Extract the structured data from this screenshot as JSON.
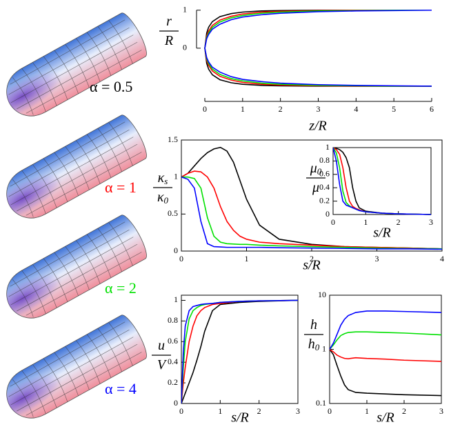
{
  "chart_data": [
    {
      "type": "line",
      "xlabel": "z/R",
      "ylabel": {
        "num": "r",
        "den": "R"
      },
      "frame": false,
      "x": [
        6,
        5,
        4,
        3,
        2,
        1.5,
        1,
        0.7,
        0.4,
        0.2,
        0.1,
        0.05,
        0,
        0.05,
        0.1,
        0.2,
        0.4,
        0.7,
        1,
        1.5,
        2,
        3,
        4,
        5,
        6
      ],
      "xlim": [
        0,
        6
      ],
      "xticks": [
        0,
        1,
        2,
        3,
        4,
        5,
        6
      ],
      "ylim": [
        -1.4,
        1.05
      ],
      "yticks": [
        0,
        1
      ],
      "series": [
        {
          "name": "α = 0.5",
          "color": "#000000",
          "values": [
            1,
            1,
            1,
            1,
            0.99,
            0.98,
            0.95,
            0.91,
            0.83,
            0.7,
            0.55,
            0.4,
            0,
            -0.4,
            -0.55,
            -0.7,
            -0.83,
            -0.91,
            -0.95,
            -0.98,
            -0.99,
            -1,
            -1,
            -1,
            -1
          ]
        },
        {
          "name": "α = 1",
          "color": "#ff0000",
          "values": [
            1,
            1,
            1,
            0.99,
            0.97,
            0.95,
            0.9,
            0.84,
            0.74,
            0.6,
            0.45,
            0.32,
            0,
            -0.32,
            -0.45,
            -0.6,
            -0.74,
            -0.84,
            -0.9,
            -0.95,
            -0.97,
            -0.99,
            -1,
            -1,
            -1
          ]
        },
        {
          "name": "α = 2",
          "color": "#00e000",
          "values": [
            1,
            1,
            0.99,
            0.98,
            0.95,
            0.92,
            0.86,
            0.8,
            0.69,
            0.55,
            0.4,
            0.28,
            0,
            -0.28,
            -0.4,
            -0.55,
            -0.69,
            -0.8,
            -0.86,
            -0.92,
            -0.95,
            -0.98,
            -0.99,
            -1,
            -1
          ]
        },
        {
          "name": "α = 4",
          "color": "#0000ff",
          "values": [
            1,
            0.99,
            0.98,
            0.96,
            0.92,
            0.88,
            0.82,
            0.75,
            0.63,
            0.5,
            0.36,
            0.25,
            0,
            -0.25,
            -0.36,
            -0.5,
            -0.63,
            -0.75,
            -0.82,
            -0.88,
            -0.92,
            -0.96,
            -0.98,
            -0.99,
            -1
          ]
        }
      ]
    },
    {
      "type": "line",
      "xlabel": "s/R",
      "ylabel": {
        "num": "κ",
        "num_sub": "s",
        "den": "κ",
        "den_sub": "0"
      },
      "frame": true,
      "x": [
        0,
        0.1,
        0.2,
        0.3,
        0.4,
        0.5,
        0.6,
        0.7,
        0.8,
        0.9,
        1,
        1.2,
        1.5,
        2,
        2.5,
        3,
        3.5,
        4
      ],
      "xlim": [
        0,
        4
      ],
      "xticks": [
        0,
        1,
        2,
        3,
        4
      ],
      "ylim": [
        0,
        1.5
      ],
      "yticks": [
        0,
        0.5,
        1,
        1.5
      ],
      "series": [
        {
          "color": "#000000",
          "values": [
            1,
            1.05,
            1.15,
            1.25,
            1.33,
            1.38,
            1.4,
            1.35,
            1.2,
            0.95,
            0.7,
            0.35,
            0.16,
            0.09,
            0.06,
            0.05,
            0.04,
            0.03
          ]
        },
        {
          "color": "#ff0000",
          "values": [
            1,
            1.05,
            1.08,
            1.07,
            1.0,
            0.85,
            0.6,
            0.4,
            0.28,
            0.2,
            0.16,
            0.12,
            0.1,
            0.08,
            0.06,
            0.05,
            0.04,
            0.03
          ]
        },
        {
          "color": "#00e000",
          "values": [
            1,
            1.0,
            0.98,
            0.85,
            0.45,
            0.2,
            0.12,
            0.1,
            0.095,
            0.09,
            0.09,
            0.08,
            0.07,
            0.06,
            0.05,
            0.04,
            0.035,
            0.03
          ]
        },
        {
          "color": "#0000ff",
          "values": [
            1,
            0.97,
            0.85,
            0.4,
            0.1,
            0.06,
            0.055,
            0.05,
            0.05,
            0.05,
            0.05,
            0.05,
            0.045,
            0.04,
            0.035,
            0.03,
            0.03,
            0.025
          ]
        }
      ]
    },
    {
      "type": "line",
      "xlabel": "s/R",
      "ylabel": {
        "num": "μ",
        "num_sub": "0",
        "den": "μ"
      },
      "frame": true,
      "x": [
        0,
        0.1,
        0.2,
        0.3,
        0.4,
        0.5,
        0.6,
        0.7,
        0.8,
        1,
        1.5,
        2,
        2.5,
        3
      ],
      "xlim": [
        0,
        3
      ],
      "xticks": [
        0,
        1,
        2,
        3
      ],
      "ylim": [
        0,
        1
      ],
      "yticks": [
        0,
        0.2,
        0.4,
        0.6,
        0.8,
        1
      ],
      "series": [
        {
          "color": "#000000",
          "values": [
            1,
            0.99,
            0.97,
            0.93,
            0.85,
            0.7,
            0.4,
            0.2,
            0.1,
            0.05,
            0.02,
            0.01,
            0.005,
            0
          ]
        },
        {
          "color": "#ff0000",
          "values": [
            1,
            0.97,
            0.9,
            0.7,
            0.4,
            0.2,
            0.12,
            0.09,
            0.07,
            0.04,
            0.02,
            0.01,
            0.005,
            0
          ]
        },
        {
          "color": "#00e000",
          "values": [
            1,
            0.92,
            0.7,
            0.35,
            0.18,
            0.13,
            0.1,
            0.08,
            0.06,
            0.04,
            0.02,
            0.01,
            0.005,
            0
          ]
        },
        {
          "color": "#0000ff",
          "values": [
            1,
            0.8,
            0.45,
            0.2,
            0.14,
            0.12,
            0.1,
            0.08,
            0.06,
            0.04,
            0.02,
            0.01,
            0.005,
            0
          ]
        }
      ]
    },
    {
      "type": "line",
      "xlabel": "s/R",
      "ylabel": {
        "num": "u",
        "den": "V"
      },
      "frame": true,
      "x": [
        0,
        0.05,
        0.1,
        0.2,
        0.3,
        0.4,
        0.5,
        0.6,
        0.8,
        1,
        1.5,
        2,
        3
      ],
      "xlim": [
        0,
        3
      ],
      "xticks": [
        0,
        1,
        2,
        3
      ],
      "ylim": [
        0,
        1.05
      ],
      "yticks": [
        0,
        0.2,
        0.4,
        0.6,
        0.8,
        1
      ],
      "series": [
        {
          "color": "#000000",
          "values": [
            0,
            0.05,
            0.1,
            0.2,
            0.3,
            0.42,
            0.55,
            0.7,
            0.9,
            0.96,
            0.98,
            0.99,
            1
          ]
        },
        {
          "color": "#ff0000",
          "values": [
            0,
            0.2,
            0.35,
            0.6,
            0.75,
            0.85,
            0.9,
            0.93,
            0.96,
            0.97,
            0.99,
            0.995,
            1
          ]
        },
        {
          "color": "#00e000",
          "values": [
            0,
            0.35,
            0.6,
            0.82,
            0.9,
            0.93,
            0.95,
            0.96,
            0.97,
            0.98,
            0.99,
            0.995,
            1
          ]
        },
        {
          "color": "#0000ff",
          "values": [
            0,
            0.5,
            0.75,
            0.9,
            0.94,
            0.95,
            0.96,
            0.965,
            0.97,
            0.98,
            0.99,
            0.995,
            1
          ]
        }
      ]
    },
    {
      "type": "line",
      "xlabel": "s/R",
      "ylabel": {
        "num": "h",
        "den": "h",
        "den_sub": "0"
      },
      "frame": true,
      "ylog": true,
      "x": [
        0,
        0.1,
        0.2,
        0.3,
        0.4,
        0.5,
        0.7,
        1,
        1.5,
        2,
        3
      ],
      "xlim": [
        0,
        3
      ],
      "xticks": [
        0,
        1,
        2,
        3
      ],
      "ylim": [
        0.1,
        10
      ],
      "yticks": [
        0.1,
        1,
        10
      ],
      "series": [
        {
          "color": "#000000",
          "values": [
            1,
            0.8,
            0.5,
            0.32,
            0.22,
            0.18,
            0.16,
            0.155,
            0.15,
            0.145,
            0.14
          ]
        },
        {
          "color": "#ff0000",
          "values": [
            1,
            0.9,
            0.78,
            0.72,
            0.68,
            0.67,
            0.7,
            0.68,
            0.66,
            0.63,
            0.6
          ]
        },
        {
          "color": "#00e000",
          "values": [
            1,
            1.2,
            1.5,
            1.8,
            1.95,
            2.05,
            2.1,
            2.1,
            2.05,
            2.0,
            1.85
          ]
        },
        {
          "color": "#0000ff",
          "values": [
            1,
            1.3,
            1.9,
            2.8,
            3.6,
            4.2,
            4.8,
            5.1,
            5.1,
            5.0,
            4.8
          ]
        }
      ]
    }
  ]
}
